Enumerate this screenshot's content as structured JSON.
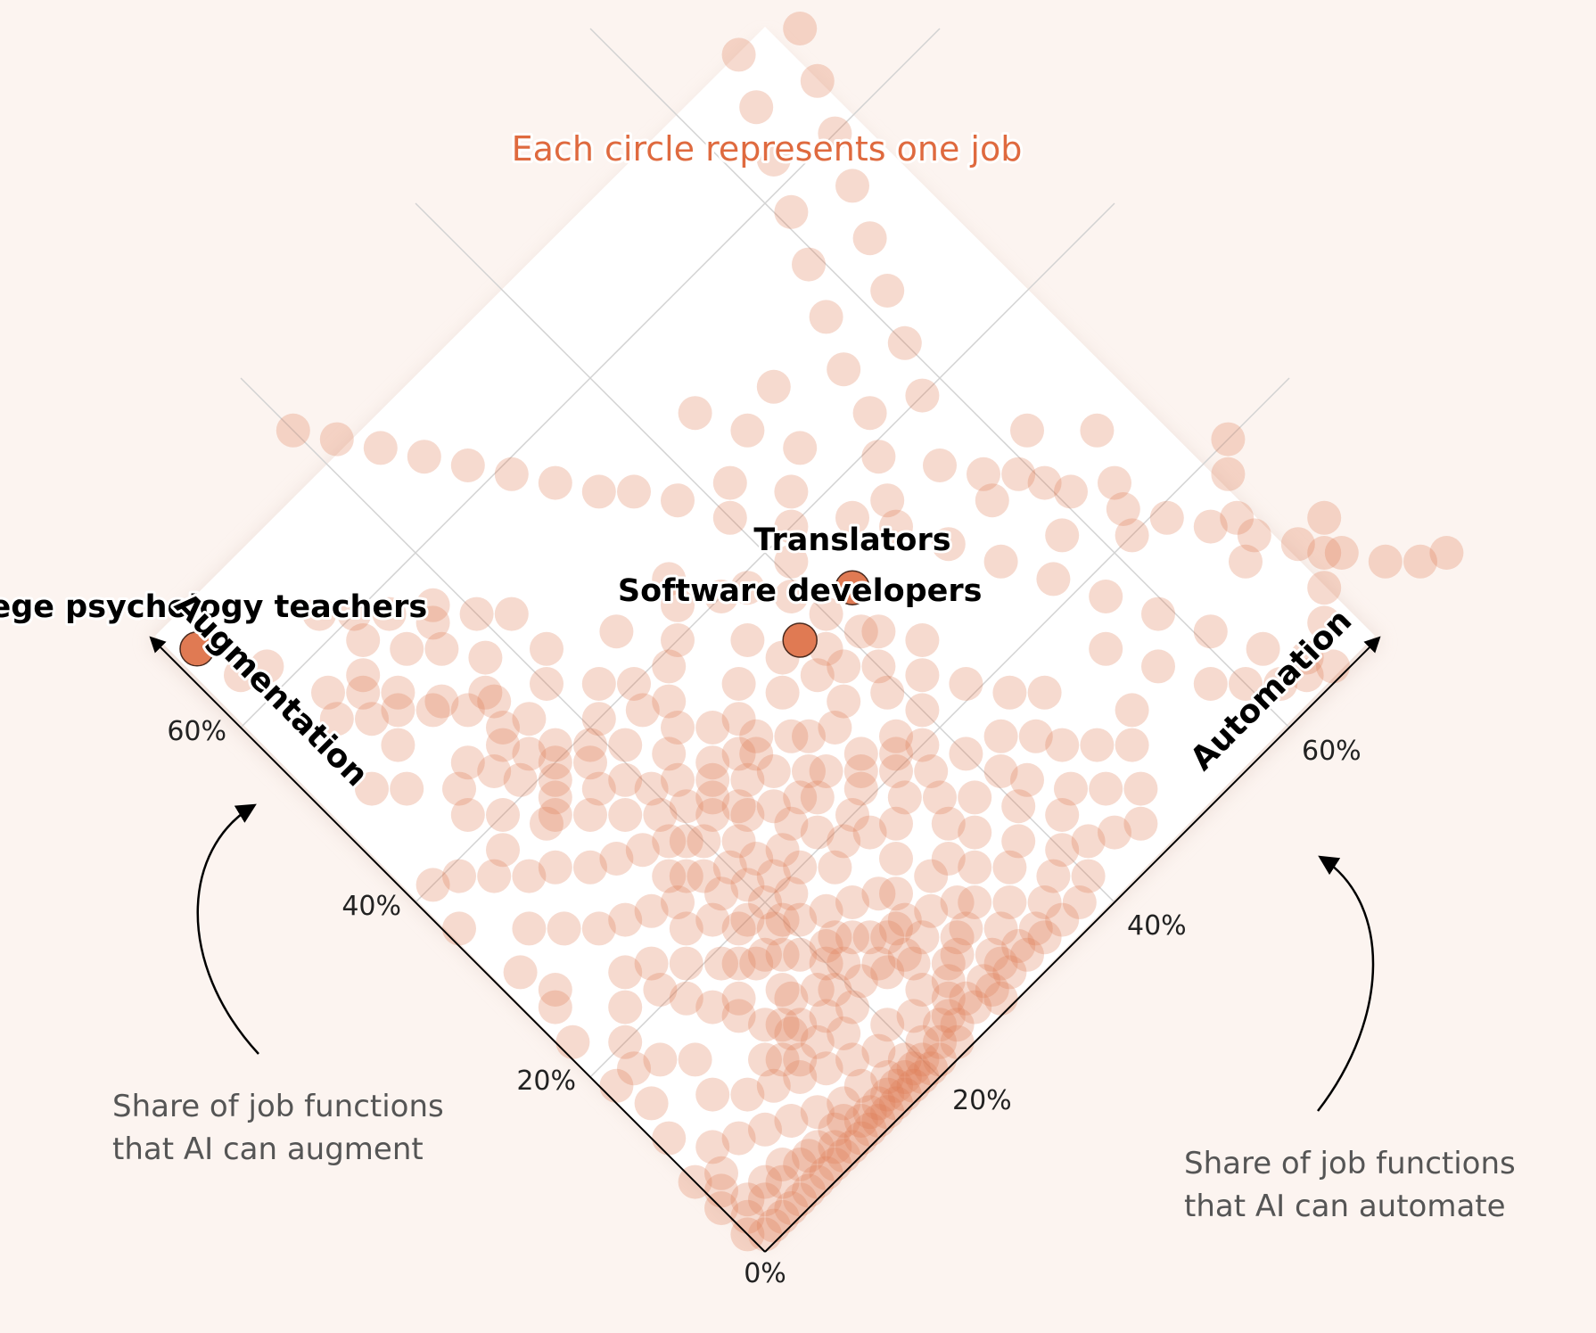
{
  "chart_data": {
    "type": "scatter",
    "title": "Each circle represents one job",
    "x_axis": {
      "name": "Automation",
      "range": [
        0,
        80
      ],
      "ticks": [
        "0%",
        "20%",
        "40%",
        "60%"
      ],
      "description": "Share of job functions that AI can automate"
    },
    "y_axis": {
      "name": "Augmentation",
      "range": [
        0,
        80
      ],
      "ticks": [
        "20%",
        "40%",
        "60%"
      ],
      "description": "Share of job functions that AI can augment"
    },
    "origin_label": "0%",
    "highlighted": [
      {
        "name": "College psychology teachers",
        "automation": 2,
        "augmentation": 67
      },
      {
        "name": "Translators",
        "automation": 43,
        "augmentation": 33
      },
      {
        "name": "Software developers",
        "automation": 37,
        "augmentation": 33
      }
    ],
    "points": [
      [
        10,
        52
      ],
      [
        12,
        50
      ],
      [
        16,
        47
      ],
      [
        3,
        63
      ],
      [
        5,
        62
      ],
      [
        7,
        57
      ],
      [
        9,
        55
      ],
      [
        11,
        53
      ],
      [
        6,
        55
      ],
      [
        8,
        53
      ],
      [
        14,
        48
      ],
      [
        13,
        50
      ],
      [
        15,
        45
      ],
      [
        17,
        44
      ],
      [
        11,
        45
      ],
      [
        12,
        43
      ],
      [
        13,
        41
      ],
      [
        9,
        44
      ],
      [
        8,
        42
      ],
      [
        15,
        42
      ],
      [
        16,
        40
      ],
      [
        14,
        38
      ],
      [
        17,
        36
      ],
      [
        18,
        38
      ],
      [
        19,
        35
      ],
      [
        20,
        33
      ],
      [
        22,
        32
      ],
      [
        24,
        30
      ],
      [
        23,
        34
      ],
      [
        21,
        37
      ],
      [
        25,
        35
      ],
      [
        27,
        33
      ],
      [
        26,
        37
      ],
      [
        28,
        39
      ],
      [
        24,
        38
      ],
      [
        30,
        40
      ],
      [
        32,
        42
      ],
      [
        33,
        31
      ],
      [
        35,
        33
      ],
      [
        34,
        36
      ],
      [
        29,
        30
      ],
      [
        31,
        28
      ],
      [
        28,
        27
      ],
      [
        26,
        25
      ],
      [
        29,
        23
      ],
      [
        31,
        24
      ],
      [
        34,
        26
      ],
      [
        36,
        27
      ],
      [
        38,
        29
      ],
      [
        40,
        33
      ],
      [
        38,
        31
      ],
      [
        36,
        30
      ],
      [
        32,
        27
      ],
      [
        41,
        30
      ],
      [
        40,
        27
      ],
      [
        37,
        22
      ],
      [
        35,
        20
      ],
      [
        33,
        22
      ],
      [
        30,
        20
      ],
      [
        28,
        19
      ],
      [
        26,
        18
      ],
      [
        27,
        21
      ],
      [
        24,
        20
      ],
      [
        22,
        21
      ],
      [
        20,
        22
      ],
      [
        18,
        23
      ],
      [
        17,
        26
      ],
      [
        19,
        28
      ],
      [
        21,
        30
      ],
      [
        16,
        30
      ],
      [
        14,
        31
      ],
      [
        12,
        32
      ],
      [
        10,
        34
      ],
      [
        8,
        35
      ],
      [
        6,
        37
      ],
      [
        4,
        39
      ],
      [
        2,
        40
      ],
      [
        1,
        36
      ],
      [
        2,
        30
      ],
      [
        5,
        32
      ],
      [
        3,
        27
      ],
      [
        7,
        30
      ],
      [
        9,
        28
      ],
      [
        11,
        27
      ],
      [
        13,
        26
      ],
      [
        15,
        25
      ],
      [
        17,
        20
      ],
      [
        19,
        18
      ],
      [
        21,
        17
      ],
      [
        23,
        16
      ],
      [
        25,
        15
      ],
      [
        27,
        14
      ],
      [
        22,
        14
      ],
      [
        20,
        13
      ],
      [
        18,
        12
      ],
      [
        16,
        13
      ],
      [
        24,
        12
      ],
      [
        26,
        11
      ],
      [
        28,
        13
      ],
      [
        30,
        15
      ],
      [
        32,
        17
      ],
      [
        34,
        18
      ],
      [
        36,
        16
      ],
      [
        31,
        12
      ],
      [
        29,
        10
      ],
      [
        27,
        9
      ],
      [
        25,
        8
      ],
      [
        23,
        9
      ],
      [
        21,
        10
      ],
      [
        19,
        9
      ],
      [
        17,
        8
      ],
      [
        15,
        9
      ],
      [
        14,
        11
      ],
      [
        13,
        13
      ],
      [
        12,
        15
      ],
      [
        11,
        17
      ],
      [
        10,
        19
      ],
      [
        9,
        21
      ],
      [
        8,
        24
      ],
      [
        6,
        22
      ],
      [
        4,
        20
      ],
      [
        3,
        18
      ],
      [
        2,
        15
      ],
      [
        1,
        12
      ],
      [
        1,
        18
      ],
      [
        1,
        23
      ],
      [
        2,
        26
      ],
      [
        5,
        17
      ],
      [
        7,
        15
      ],
      [
        6,
        12
      ],
      [
        8,
        10
      ],
      [
        10,
        9
      ],
      [
        12,
        8
      ],
      [
        14,
        7
      ],
      [
        16,
        6
      ],
      [
        18,
        5
      ],
      [
        20,
        6
      ],
      [
        22,
        5
      ],
      [
        24,
        6
      ],
      [
        26,
        5
      ],
      [
        28,
        6
      ],
      [
        30,
        7
      ],
      [
        32,
        8
      ],
      [
        34,
        10
      ],
      [
        36,
        12
      ],
      [
        38,
        14
      ],
      [
        37,
        18
      ],
      [
        35,
        14
      ],
      [
        33,
        12
      ],
      [
        31,
        9
      ],
      [
        29,
        7
      ],
      [
        27,
        6
      ],
      [
        25,
        4
      ],
      [
        23,
        3
      ],
      [
        21,
        3
      ],
      [
        19,
        3
      ],
      [
        17,
        3
      ],
      [
        15,
        4
      ],
      [
        13,
        4
      ],
      [
        11,
        5
      ],
      [
        9,
        6
      ],
      [
        7,
        7
      ],
      [
        5,
        8
      ],
      [
        3,
        9
      ],
      [
        2,
        7
      ],
      [
        1,
        6
      ],
      [
        1,
        3
      ],
      [
        2,
        4
      ],
      [
        3,
        3
      ],
      [
        4,
        4
      ],
      [
        5,
        3
      ],
      [
        6,
        4
      ],
      [
        7,
        3
      ],
      [
        8,
        3
      ],
      [
        9,
        3
      ],
      [
        10,
        2
      ],
      [
        11,
        3
      ],
      [
        12,
        3
      ],
      [
        13,
        2
      ],
      [
        14,
        2
      ],
      [
        15,
        2
      ],
      [
        16,
        2
      ],
      [
        17,
        2
      ],
      [
        18,
        2
      ],
      [
        19,
        1
      ],
      [
        20,
        2
      ],
      [
        21,
        1
      ],
      [
        22,
        2
      ],
      [
        23,
        1
      ],
      [
        24,
        2
      ],
      [
        0,
        8
      ],
      [
        0,
        5
      ],
      [
        0,
        2
      ],
      [
        1,
        1
      ],
      [
        2,
        1
      ],
      [
        3,
        1
      ],
      [
        4,
        1
      ],
      [
        5,
        1
      ],
      [
        6,
        1
      ],
      [
        7,
        1
      ],
      [
        8,
        1
      ],
      [
        9,
        1
      ],
      [
        10,
        1
      ],
      [
        11,
        1
      ],
      [
        12,
        1
      ],
      [
        13,
        1
      ],
      [
        14,
        1
      ],
      [
        15,
        1
      ],
      [
        16,
        1
      ],
      [
        17,
        1
      ],
      [
        18,
        1
      ],
      [
        19,
        2
      ],
      [
        20,
        1
      ],
      [
        12,
        10
      ],
      [
        14,
        12
      ],
      [
        16,
        14
      ],
      [
        18,
        16
      ],
      [
        20,
        18
      ],
      [
        22,
        19
      ],
      [
        24,
        22
      ],
      [
        26,
        23
      ],
      [
        28,
        24
      ],
      [
        30,
        25
      ],
      [
        13,
        16
      ],
      [
        15,
        18
      ],
      [
        17,
        17
      ],
      [
        19,
        15
      ],
      [
        21,
        14
      ],
      [
        23,
        13
      ],
      [
        25,
        11
      ],
      [
        27,
        11
      ],
      [
        22,
        25
      ],
      [
        24,
        26
      ],
      [
        26,
        28
      ],
      [
        28,
        29
      ],
      [
        20,
        27
      ],
      [
        18,
        29
      ],
      [
        16,
        27
      ],
      [
        14,
        23
      ],
      [
        12,
        21
      ],
      [
        10,
        23
      ],
      [
        11,
        11
      ],
      [
        13,
        9
      ],
      [
        15,
        11
      ],
      [
        17,
        10
      ],
      [
        19,
        11
      ],
      [
        21,
        12
      ],
      [
        23,
        10
      ],
      [
        25,
        9
      ],
      [
        18,
        20
      ],
      [
        20,
        20
      ],
      [
        22,
        23
      ],
      [
        16,
        22
      ],
      [
        14,
        19
      ],
      [
        16,
        17
      ],
      [
        18,
        25
      ],
      [
        20,
        24
      ],
      [
        22,
        28
      ],
      [
        24,
        27
      ],
      [
        27,
        30
      ],
      [
        29,
        32
      ],
      [
        31,
        34
      ],
      [
        25,
        31
      ],
      [
        23,
        29
      ],
      [
        19,
        31
      ],
      [
        17,
        33
      ],
      [
        15,
        35
      ],
      [
        13,
        37
      ],
      [
        15,
        39
      ],
      [
        17,
        41
      ],
      [
        19,
        39
      ],
      [
        21,
        40
      ],
      [
        23,
        42
      ],
      [
        25,
        40
      ],
      [
        27,
        44
      ],
      [
        12,
        37
      ],
      [
        10,
        40
      ],
      [
        8,
        38
      ],
      [
        14,
        44
      ],
      [
        16,
        48
      ],
      [
        18,
        50
      ],
      [
        20,
        45
      ],
      [
        22,
        47
      ],
      [
        6,
        47
      ],
      [
        4,
        49
      ],
      [
        8,
        50
      ],
      [
        10,
        56
      ],
      [
        12,
        58
      ],
      [
        14,
        55
      ],
      [
        16,
        53
      ],
      [
        18,
        56
      ],
      [
        20,
        53
      ],
      [
        22,
        51
      ],
      [
        11,
        62
      ],
      [
        13,
        60
      ],
      [
        15,
        58
      ],
      [
        17,
        55
      ],
      [
        36,
        21
      ],
      [
        34,
        23
      ],
      [
        32,
        21
      ],
      [
        30,
        18
      ],
      [
        38,
        20
      ],
      [
        40,
        22
      ],
      [
        42,
        24
      ],
      [
        39,
        25
      ],
      [
        35,
        40
      ],
      [
        37,
        39
      ],
      [
        33,
        44
      ],
      [
        44,
        21
      ],
      [
        40,
        17
      ],
      [
        38,
        9
      ],
      [
        40,
        11
      ],
      [
        42,
        12
      ],
      [
        36,
        8
      ],
      [
        34,
        6
      ],
      [
        32,
        5
      ],
      [
        30,
        4
      ],
      [
        28,
        3
      ],
      [
        26,
        3
      ],
      [
        24,
        3
      ],
      [
        46,
        3
      ],
      [
        44,
        4
      ],
      [
        42,
        5
      ],
      [
        40,
        6
      ],
      [
        38,
        5
      ],
      [
        36,
        4
      ],
      [
        34,
        3
      ],
      [
        32,
        3
      ],
      [
        30,
        3
      ],
      [
        28,
        2
      ],
      [
        26,
        2
      ],
      [
        48,
        5
      ],
      [
        46,
        7
      ],
      [
        44,
        9
      ],
      [
        42,
        8
      ],
      [
        40,
        3
      ],
      [
        38,
        2
      ],
      [
        36,
        2
      ],
      [
        34,
        2
      ],
      [
        32,
        2
      ],
      [
        30,
        2
      ],
      [
        28,
        1
      ],
      [
        50,
        8
      ],
      [
        48,
        10
      ],
      [
        46,
        12
      ],
      [
        52,
        10
      ],
      [
        45,
        14
      ],
      [
        43,
        16
      ],
      [
        41,
        14
      ],
      [
        48,
        16
      ],
      [
        46,
        18
      ],
      [
        44,
        26
      ],
      [
        42,
        29
      ],
      [
        39,
        36
      ],
      [
        41,
        38
      ],
      [
        43,
        40
      ],
      [
        45,
        42
      ],
      [
        47,
        37
      ],
      [
        49,
        34
      ],
      [
        51,
        30
      ],
      [
        53,
        26
      ],
      [
        55,
        22
      ],
      [
        57,
        18
      ],
      [
        54,
        15
      ],
      [
        56,
        11
      ],
      [
        58,
        7
      ],
      [
        60,
        5
      ],
      [
        62,
        3
      ],
      [
        64,
        2
      ],
      [
        66,
        1
      ],
      [
        59,
        14
      ],
      [
        61,
        10
      ],
      [
        63,
        6
      ],
      [
        65,
        3
      ],
      [
        68,
        4
      ],
      [
        70,
        6
      ],
      [
        72,
        8
      ],
      [
        74,
        10
      ],
      [
        67,
        12
      ],
      [
        69,
        15
      ],
      [
        71,
        18
      ],
      [
        73,
        20
      ],
      [
        62,
        20
      ],
      [
        64,
        24
      ],
      [
        66,
        28
      ],
      [
        58,
        24
      ],
      [
        60,
        28
      ],
      [
        62,
        32
      ],
      [
        56,
        30
      ],
      [
        50,
        36
      ],
      [
        52,
        39
      ],
      [
        54,
        42
      ],
      [
        48,
        44
      ],
      [
        46,
        48
      ],
      [
        44,
        52
      ],
      [
        50,
        49
      ],
      [
        42,
        46
      ],
      [
        40,
        44
      ],
      [
        38,
        48
      ],
      [
        36,
        51
      ],
      [
        34,
        53
      ],
      [
        32,
        56
      ],
      [
        30,
        59
      ],
      [
        28,
        62
      ],
      [
        26,
        65
      ],
      [
        24,
        68
      ],
      [
        22,
        71
      ],
      [
        20,
        74
      ],
      [
        55,
        46
      ],
      [
        57,
        50
      ],
      [
        59,
        54
      ],
      [
        61,
        58
      ],
      [
        63,
        62
      ],
      [
        65,
        66
      ],
      [
        67,
        70
      ],
      [
        58,
        40
      ],
      [
        60,
        44
      ],
      [
        62,
        48
      ],
      [
        64,
        52
      ],
      [
        66,
        56
      ],
      [
        68,
        60
      ],
      [
        70,
        64
      ],
      [
        72,
        68
      ],
      [
        74,
        72
      ],
      [
        76,
        76
      ],
      [
        78,
        78
      ],
      [
        55,
        35
      ],
      [
        57,
        32
      ],
      [
        59,
        30
      ],
      [
        61,
        26
      ],
      [
        63,
        22
      ],
      [
        65,
        19
      ],
      [
        67,
        16
      ],
      [
        69,
        13
      ],
      [
        71,
        10
      ],
      [
        73,
        7
      ],
      [
        75,
        4
      ],
      [
        77,
        2
      ],
      [
        79,
        1
      ]
    ]
  },
  "notes": {
    "left": [
      "Share of job functions",
      "that AI can augment"
    ],
    "right": [
      "Share of job functions",
      "that AI can automate"
    ]
  },
  "colors": {
    "accent": "#e07a53",
    "title": "#df6a3f",
    "grid": "#d2d2d2",
    "background": "#fcf4f0",
    "plot": "#ffffff"
  }
}
